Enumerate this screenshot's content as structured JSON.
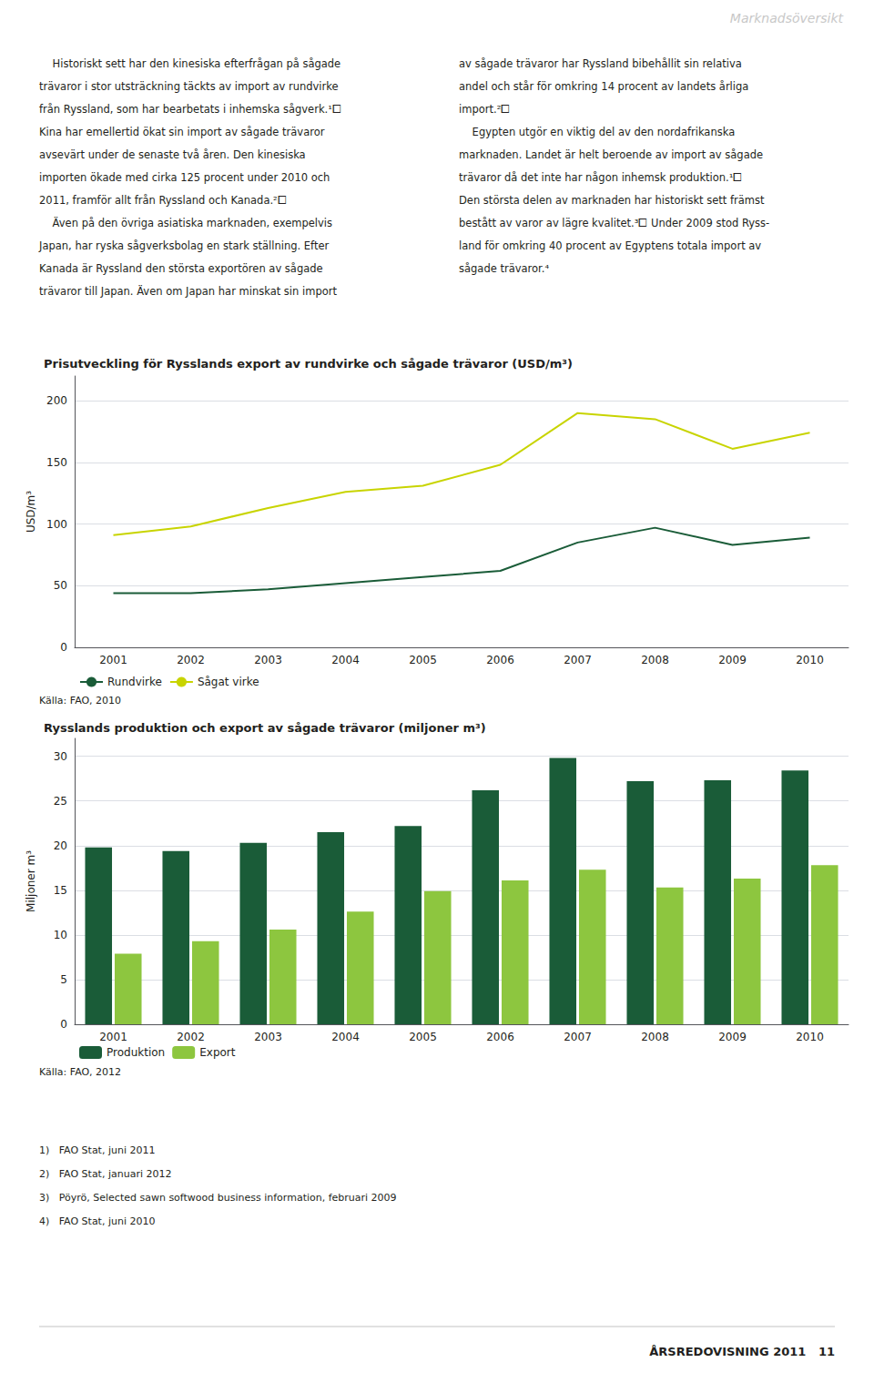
{
  "title": "Marknadsöversikt",
  "columns": [
    [
      "    Historiskt sett har den kinesiska efterfrågan på sågade",
      "trävaror i stor utsträckning täckts av import av rundvirke",
      "från Ryssland, som har bearbetats i inhemska sågverk.¹⧠",
      "Kina har emellertid ökat sin import av sågade trävaror",
      "avsevärt under de senaste två åren. Den kinesiska",
      "importen ökade med cirka 125 procent under 2010 och",
      "2011, framför allt från Ryssland och Kanada.²⧠",
      "    Även på den övriga asiatiska marknaden, exempelvis",
      "Japan, har ryska sågverksbolag en stark ställning. Efter",
      "Kanada är Ryssland den största exportören av sågade",
      "trävaror till Japan. Även om Japan har minskat sin import"
    ],
    [
      "av sågade trävaror har Ryssland bibehållit sin relativa",
      "andel och står för omkring 14 procent av landets årliga",
      "import.²⧠",
      "    Egypten utgör en viktig del av den nordafrikanska",
      "marknaden. Landet är helt beroende av import av sågade",
      "trävaror då det inte har någon inhemsk produktion.¹⧠",
      "Den största delen av marknaden har historiskt sett främst",
      "bestått av varor av lägre kvalitet.³⧠ Under 2009 stod Ryss-",
      "land för omkring 40 procent av Egyptens totala import av",
      "sågade trävaror.⁴"
    ]
  ],
  "footnotes": [
    "1)   FAO Stat, juni 2011",
    "2)   FAO Stat, januari 2012",
    "3)   Pöyrö, Selected sawn softwood business information, februari 2009",
    "4)   FAO Stat, juni 2010"
  ],
  "footer": "ÅRSREDOVISNING 2011   11",
  "chart_data": [
    {
      "type": "line",
      "title": "Prisutveckling för Rysslands export av rundvirke och sågade trävaror (USD/m³)",
      "categories": [
        2001,
        2002,
        2003,
        2004,
        2005,
        2006,
        2007,
        2008,
        2009,
        2010
      ],
      "series": [
        {
          "name": "Rundvirke",
          "color": "#1a5c38",
          "values": [
            44,
            44,
            47,
            52,
            57,
            62,
            85,
            97,
            83,
            89
          ]
        },
        {
          "name": "Sågat virke",
          "color": "#c8d400",
          "values": [
            91,
            98,
            113,
            126,
            131,
            148,
            190,
            185,
            161,
            174
          ]
        }
      ],
      "ylabel": "USD/m³",
      "ylim": [
        0,
        220
      ],
      "yticks": [
        0,
        50,
        100,
        150,
        200
      ],
      "grid": true,
      "legend": "bottom",
      "annotations": [
        "Källa: FAO, 2010"
      ]
    },
    {
      "type": "bar",
      "title": "Rysslands produktion och export av sågade trävaror (miljoner m³)",
      "categories": [
        2001,
        2002,
        2003,
        2004,
        2005,
        2006,
        2007,
        2008,
        2009,
        2010
      ],
      "series": [
        {
          "name": "Produktion",
          "color": "#1a5c38",
          "values": [
            19.8,
            19.4,
            20.3,
            21.5,
            22.2,
            26.2,
            29.8,
            27.2,
            27.3,
            28.4
          ]
        },
        {
          "name": "Export",
          "color": "#8dc63f",
          "values": [
            7.9,
            9.3,
            10.6,
            12.6,
            14.9,
            16.1,
            17.3,
            15.3,
            16.3,
            17.8
          ]
        }
      ],
      "ylabel": "Miljoner m³",
      "ylim": [
        0,
        32
      ],
      "yticks": [
        0,
        5,
        10,
        15,
        20,
        25,
        30
      ],
      "grid": true,
      "legend": "bottom",
      "annotations": [
        "Källa: FAO, 2012"
      ]
    }
  ]
}
